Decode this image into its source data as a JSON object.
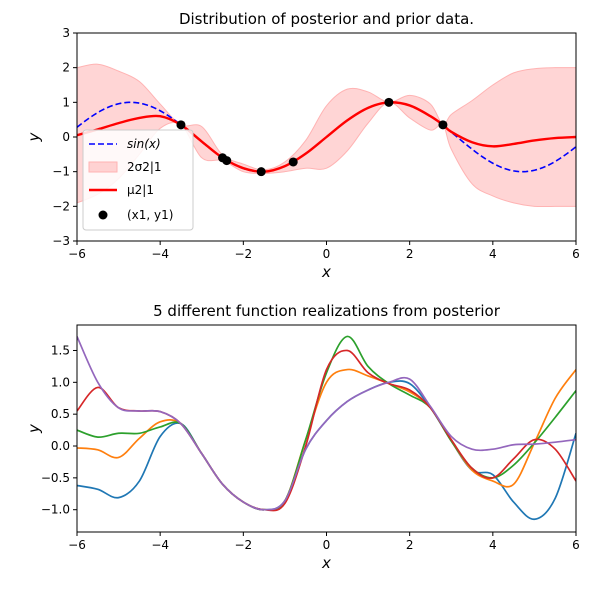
{
  "chart_data": [
    {
      "type": "line",
      "title": "Distribution of posterior and prior data.",
      "xlabel": "x",
      "ylabel": "y",
      "xlim": [
        -6,
        6
      ],
      "ylim": [
        -3,
        3
      ],
      "xticks": [
        -6,
        -4,
        -2,
        0,
        2,
        4,
        6
      ],
      "yticks": [
        -3,
        -2,
        -1,
        0,
        1,
        2,
        3
      ],
      "xtick_labels": [
        "−6",
        "−4",
        "−2",
        "0",
        "2",
        "4",
        "6"
      ],
      "ytick_labels": [
        "−3",
        "−2",
        "−1",
        "0",
        "1",
        "2",
        "3"
      ],
      "grid": false,
      "legend_position": "lower-left",
      "colors": {
        "prior": "#0000ff",
        "band": "#ffb3b3",
        "mean": "#ff0000",
        "points": "#000000"
      },
      "legend": [
        {
          "key": "prior",
          "label": "sin(x)",
          "style": "dashed-line"
        },
        {
          "key": "band",
          "label": "2σ2|1",
          "style": "patch"
        },
        {
          "key": "mean",
          "label": "μ2|1",
          "style": "solid-line"
        },
        {
          "key": "points",
          "label": "(x1, y1)",
          "style": "marker"
        }
      ],
      "prior": {
        "name": "sin(x)",
        "function": "sin(x)"
      },
      "observations": {
        "name": "(x1, y1)",
        "x": [
          -3.5,
          -2.5,
          -2.4,
          -1.57,
          -0.8,
          1.5,
          2.8
        ],
        "y": [
          0.35,
          -0.6,
          -0.68,
          -1.0,
          -0.72,
          1.0,
          0.35
        ]
      },
      "mean": {
        "name": "μ2|1",
        "x": [
          -6,
          -5.5,
          -5,
          -4.5,
          -4,
          -3.5,
          -3,
          -2.5,
          -2,
          -1.5,
          -1,
          -0.5,
          0,
          0.5,
          1,
          1.5,
          2,
          2.5,
          2.8,
          3,
          3.5,
          4,
          4.5,
          5,
          5.5,
          6
        ],
        "y": [
          0.05,
          0.22,
          0.4,
          0.55,
          0.6,
          0.35,
          -0.13,
          -0.6,
          -0.9,
          -1.0,
          -0.84,
          -0.48,
          0.0,
          0.48,
          0.84,
          1.0,
          0.91,
          0.6,
          0.35,
          0.15,
          -0.15,
          -0.27,
          -0.2,
          -0.1,
          -0.03,
          0.0
        ]
      },
      "band": {
        "name": "2σ2|1",
        "x": [
          -6,
          -5.5,
          -5,
          -4.5,
          -4,
          -3.5,
          -3,
          -2.5,
          -2,
          -1.5,
          -1,
          -0.5,
          0,
          0.5,
          1,
          1.5,
          2,
          2.5,
          2.8,
          3,
          3.5,
          4,
          4.5,
          5,
          5.5,
          6
        ],
        "upper": [
          2.0,
          2.1,
          1.9,
          1.6,
          0.95,
          0.35,
          0.3,
          -0.52,
          -0.78,
          -0.95,
          -0.72,
          -0.1,
          0.9,
          1.38,
          1.3,
          1.0,
          1.2,
          0.95,
          0.35,
          0.65,
          1.05,
          1.5,
          1.85,
          1.97,
          2.0,
          2.0
        ],
        "lower": [
          -1.9,
          -1.65,
          -1.2,
          -0.5,
          0.25,
          0.35,
          -0.6,
          -0.68,
          -1.0,
          -1.05,
          -1.0,
          -0.9,
          -0.9,
          -0.4,
          0.4,
          1.0,
          0.55,
          0.2,
          0.35,
          -0.35,
          -1.35,
          -1.7,
          -1.9,
          -2.0,
          -2.0,
          -2.0
        ]
      }
    },
    {
      "type": "line",
      "title": "5 different function realizations from posterior",
      "xlabel": "x",
      "ylabel": "y",
      "xlim": [
        -6,
        6
      ],
      "ylim": [
        -1.35,
        1.9
      ],
      "xticks": [
        -6,
        -4,
        -2,
        0,
        2,
        4,
        6
      ],
      "yticks": [
        -1.0,
        -0.5,
        0.0,
        0.5,
        1.0,
        1.5
      ],
      "xtick_labels": [
        "−6",
        "−4",
        "−2",
        "0",
        "2",
        "4",
        "6"
      ],
      "ytick_labels": [
        "−1.0",
        "−0.5",
        "0.0",
        "0.5",
        "1.0",
        "1.5"
      ],
      "grid": false,
      "x": [
        -6,
        -5.5,
        -5,
        -4.5,
        -4,
        -3.5,
        -3,
        -2.5,
        -2,
        -1.5,
        -1,
        -0.5,
        0,
        0.5,
        1,
        1.5,
        2,
        2.5,
        3,
        3.5,
        4,
        4.5,
        5,
        5.5,
        6
      ],
      "series": [
        {
          "color": "#1f77b4",
          "values": [
            -0.62,
            -0.68,
            -0.81,
            -0.55,
            0.15,
            0.35,
            -0.12,
            -0.6,
            -0.88,
            -1.0,
            -0.86,
            -0.05,
            0.4,
            0.7,
            0.88,
            1.0,
            0.98,
            0.6,
            0.08,
            -0.38,
            -0.45,
            -0.88,
            -1.15,
            -0.82,
            0.2
          ]
        },
        {
          "color": "#ff7f0e",
          "values": [
            -0.03,
            -0.06,
            -0.18,
            0.12,
            0.38,
            0.35,
            -0.12,
            -0.6,
            -0.88,
            -1.0,
            -0.86,
            0.1,
            1.0,
            1.2,
            1.1,
            0.98,
            0.85,
            0.6,
            0.08,
            -0.38,
            -0.55,
            -0.6,
            0.05,
            0.75,
            1.2
          ]
        },
        {
          "color": "#2ca02c",
          "values": [
            0.25,
            0.14,
            0.2,
            0.2,
            0.3,
            0.35,
            -0.12,
            -0.6,
            -0.88,
            -1.0,
            -0.86,
            0.1,
            1.15,
            1.72,
            1.25,
            0.98,
            0.8,
            0.6,
            0.08,
            -0.35,
            -0.5,
            -0.3,
            0.05,
            0.45,
            0.87
          ]
        },
        {
          "color": "#d62728",
          "values": [
            0.55,
            0.92,
            0.6,
            0.55,
            0.54,
            0.35,
            -0.12,
            -0.6,
            -0.88,
            -1.0,
            -0.9,
            0.0,
            1.2,
            1.5,
            1.15,
            0.98,
            0.88,
            0.6,
            0.1,
            -0.35,
            -0.5,
            -0.2,
            0.1,
            -0.05,
            -0.55
          ]
        },
        {
          "color": "#9467bd",
          "values": [
            1.72,
            1.0,
            0.6,
            0.55,
            0.54,
            0.35,
            -0.12,
            -0.6,
            -0.88,
            -1.0,
            -0.86,
            -0.05,
            0.4,
            0.7,
            0.88,
            1.0,
            1.05,
            0.62,
            0.15,
            -0.05,
            -0.05,
            0.02,
            0.03,
            0.06,
            0.1
          ]
        }
      ]
    }
  ]
}
